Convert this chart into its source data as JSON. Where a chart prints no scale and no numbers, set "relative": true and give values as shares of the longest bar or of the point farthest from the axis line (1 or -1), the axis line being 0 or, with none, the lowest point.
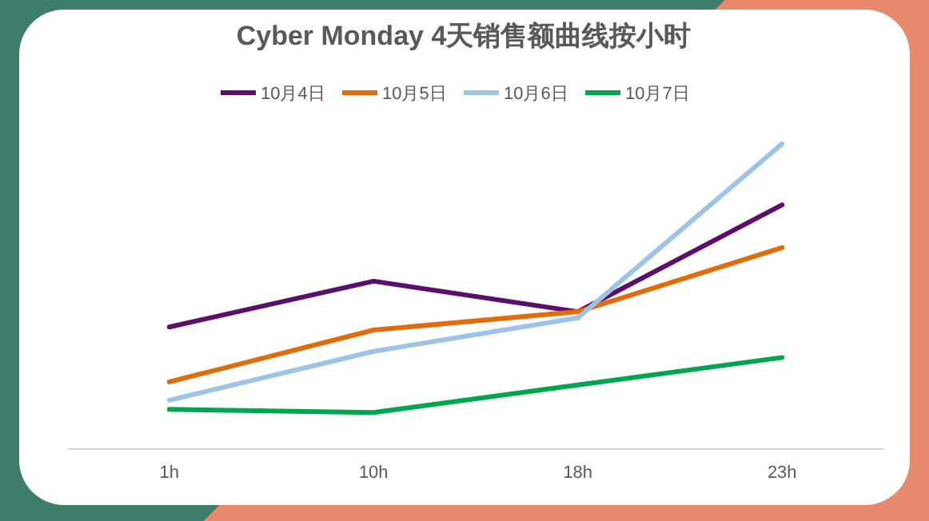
{
  "chart_data": {
    "type": "line",
    "title": "Cyber Monday 4天销售额曲线按小时",
    "categories": [
      "1h",
      "10h",
      "18h",
      "23h"
    ],
    "relative": true,
    "legend": "top",
    "series": [
      {
        "name": "10月4日",
        "color": "#5b0f6b",
        "values": [
          0.4,
          0.55,
          0.45,
          0.8
        ]
      },
      {
        "name": "10月5日",
        "color": "#e36c0a",
        "values": [
          0.22,
          0.39,
          0.45,
          0.66
        ]
      },
      {
        "name": "10月6日",
        "color": "#9dc3e6",
        "values": [
          0.16,
          0.32,
          0.43,
          1
        ]
      },
      {
        "name": "10月7日",
        "color": "#00a550",
        "values": [
          0.13,
          0.12,
          0.21,
          0.3
        ]
      }
    ]
  }
}
